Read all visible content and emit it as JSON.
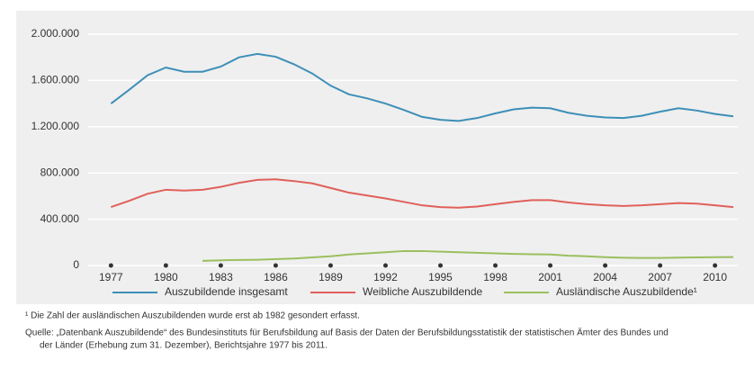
{
  "chart_data": {
    "type": "line",
    "x": [
      1977,
      1978,
      1979,
      1980,
      1981,
      1982,
      1983,
      1984,
      1985,
      1986,
      1987,
      1988,
      1989,
      1990,
      1991,
      1992,
      1993,
      1994,
      1995,
      1996,
      1997,
      1998,
      1999,
      2000,
      2001,
      2002,
      2003,
      2004,
      2005,
      2006,
      2007,
      2008,
      2009,
      2010,
      2011
    ],
    "series": [
      {
        "name": "Auszubildende insgesamt",
        "color": "#3d8fb8",
        "values": [
          1400000,
          1520000,
          1645000,
          1712000,
          1675000,
          1675000,
          1720000,
          1800000,
          1830000,
          1805000,
          1740000,
          1660000,
          1555000,
          1480000,
          1445000,
          1400000,
          1345000,
          1285000,
          1260000,
          1250000,
          1275000,
          1315000,
          1350000,
          1365000,
          1360000,
          1320000,
          1295000,
          1280000,
          1275000,
          1295000,
          1330000,
          1360000,
          1340000,
          1310000,
          1290000
        ]
      },
      {
        "name": "Weibliche Auszubildende",
        "color": "#e0605a",
        "values": [
          505000,
          560000,
          620000,
          655000,
          648000,
          655000,
          680000,
          715000,
          740000,
          745000,
          730000,
          710000,
          670000,
          630000,
          605000,
          580000,
          550000,
          520000,
          505000,
          500000,
          510000,
          530000,
          550000,
          565000,
          565000,
          545000,
          530000,
          520000,
          515000,
          520000,
          530000,
          540000,
          535000,
          520000,
          505000
        ]
      },
      {
        "name": "Ausländische Auszubildende¹",
        "color": "#9bbf5e",
        "values": [
          null,
          null,
          null,
          null,
          null,
          40000,
          45000,
          48000,
          50000,
          55000,
          60000,
          70000,
          80000,
          95000,
          105000,
          115000,
          125000,
          125000,
          120000,
          115000,
          110000,
          105000,
          100000,
          97000,
          95000,
          85000,
          80000,
          72000,
          67000,
          65000,
          65000,
          68000,
          70000,
          72000,
          73000
        ]
      }
    ],
    "xlim": [
      1976,
      2011
    ],
    "xticks": [
      1977,
      1980,
      1983,
      1986,
      1989,
      1992,
      1995,
      1998,
      2001,
      2004,
      2007,
      2010
    ],
    "ylim": [
      0,
      2000000
    ],
    "yticks": [
      0,
      {
        "value": 400000,
        "label": "400.000"
      },
      {
        "value": 800000,
        "label": "800.000"
      },
      {
        "value": 1200000,
        "label": "1.200.000"
      },
      {
        "value": 1600000,
        "label": "1.600.000"
      },
      {
        "value": 2000000,
        "label": "2.000.000"
      }
    ],
    "grid": true,
    "footnote": "¹ Die Zahl der ausländischen Auszubildenden wurde erst ab 1982 gesondert erfasst.",
    "source": [
      "Quelle: „Datenbank Auszubildende“ des Bundesinstituts für Berufsbildung auf Basis der Daten der Berufsbildungsstatistik der statistischen Ämter des Bundes und",
      "der Länder (Erhebung zum 31. Dezember), Berichtsjahre 1977 bis 2011."
    ]
  }
}
